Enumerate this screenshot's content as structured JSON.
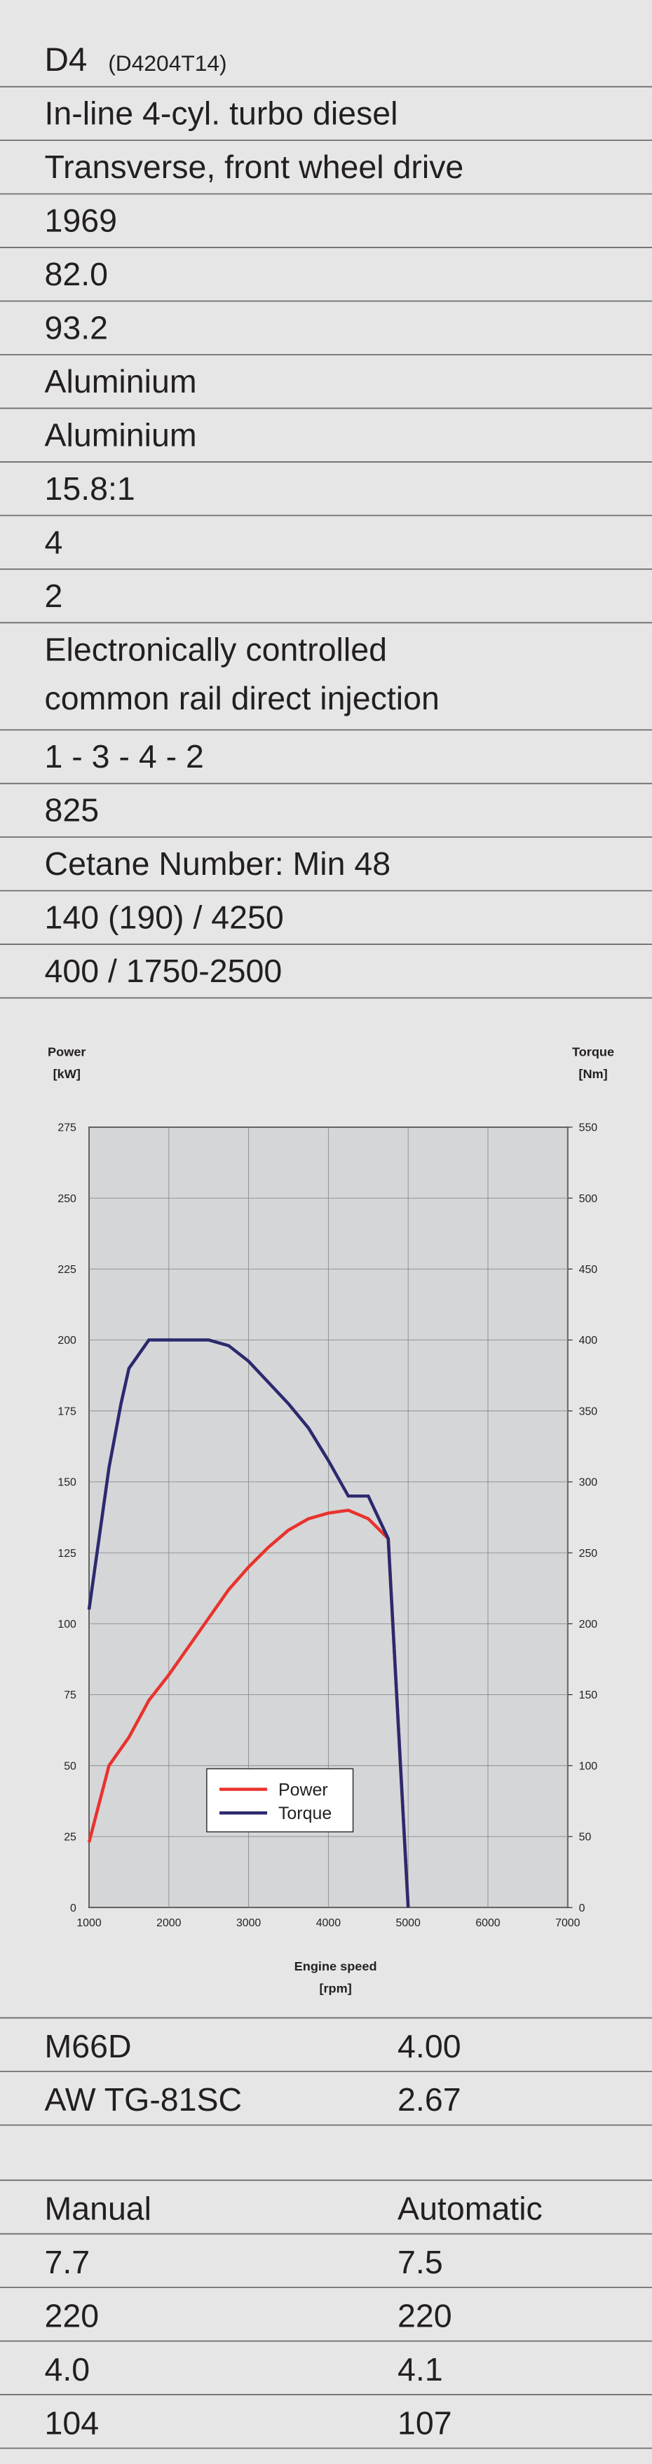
{
  "header": {
    "model": "D4",
    "code": "(D4204T14)"
  },
  "specs": [
    [
      "In-line 4-cyl. turbo diesel"
    ],
    [
      "Transverse, front wheel drive"
    ],
    [
      "1969"
    ],
    [
      "82.0"
    ],
    [
      "93.2"
    ],
    [
      "Aluminium"
    ],
    [
      "Aluminium"
    ],
    [
      "15.8:1"
    ],
    [
      "4"
    ],
    [
      "2"
    ],
    [
      "Electronically controlled",
      "common rail direct injection"
    ],
    [
      "1 - 3 - 4 - 2"
    ],
    [
      "825"
    ],
    [
      "Cetane Number: Min 48"
    ],
    [
      "140 (190) / 4250"
    ],
    [
      "400 / 1750-2500"
    ]
  ],
  "chart_data": {
    "type": "line",
    "ylabel": "Power",
    "yunit": "[kW]",
    "y2label": "Torque",
    "y2unit": "[Nm]",
    "xlabel": "Engine speed",
    "xunit": "[rpm]",
    "xlim": [
      1000,
      7000
    ],
    "xticks": [
      1000,
      2000,
      3000,
      4000,
      5000,
      6000,
      7000
    ],
    "ylim": [
      0,
      275
    ],
    "yticks": [
      0,
      25,
      50,
      75,
      100,
      125,
      150,
      175,
      200,
      225,
      250,
      275
    ],
    "y2lim": [
      0,
      550
    ],
    "y2ticks": [
      0,
      50,
      100,
      150,
      200,
      250,
      300,
      350,
      400,
      450,
      500,
      550
    ],
    "grid": true,
    "legend": "lower-center",
    "series": [
      {
        "name": "Power",
        "color": "#e8332d",
        "x": [
          1000,
          1250,
          1500,
          1750,
          2000,
          2250,
          2500,
          2750,
          3000,
          3250,
          3500,
          3750,
          4000,
          4250,
          4500,
          4750,
          5000
        ],
        "values": [
          23,
          50,
          60,
          73,
          82,
          92,
          102,
          112,
          120,
          127,
          133,
          137,
          139,
          140,
          137,
          130,
          0
        ]
      },
      {
        "name": "Torque",
        "color": "#2b2a6e",
        "axis": "y2",
        "x": [
          1000,
          1250,
          1400,
          1500,
          1750,
          2500,
          2750,
          3000,
          3250,
          3500,
          3750,
          4000,
          4250,
          4500,
          4750,
          5000
        ],
        "values": [
          210,
          310,
          355,
          380,
          400,
          400,
          396,
          385,
          370,
          355,
          338,
          315,
          290,
          290,
          260,
          0
        ]
      }
    ]
  },
  "gearbox": [
    [
      "M66D",
      "4.00"
    ],
    [
      "AW TG-81SC",
      "2.67"
    ]
  ],
  "consumption": {
    "header": [
      "Manual",
      "Automatic"
    ],
    "rows": [
      [
        "7.7",
        "7.5"
      ],
      [
        "220",
        "220"
      ],
      [
        "4.0",
        "4.1"
      ],
      [
        "104",
        "107"
      ]
    ]
  }
}
